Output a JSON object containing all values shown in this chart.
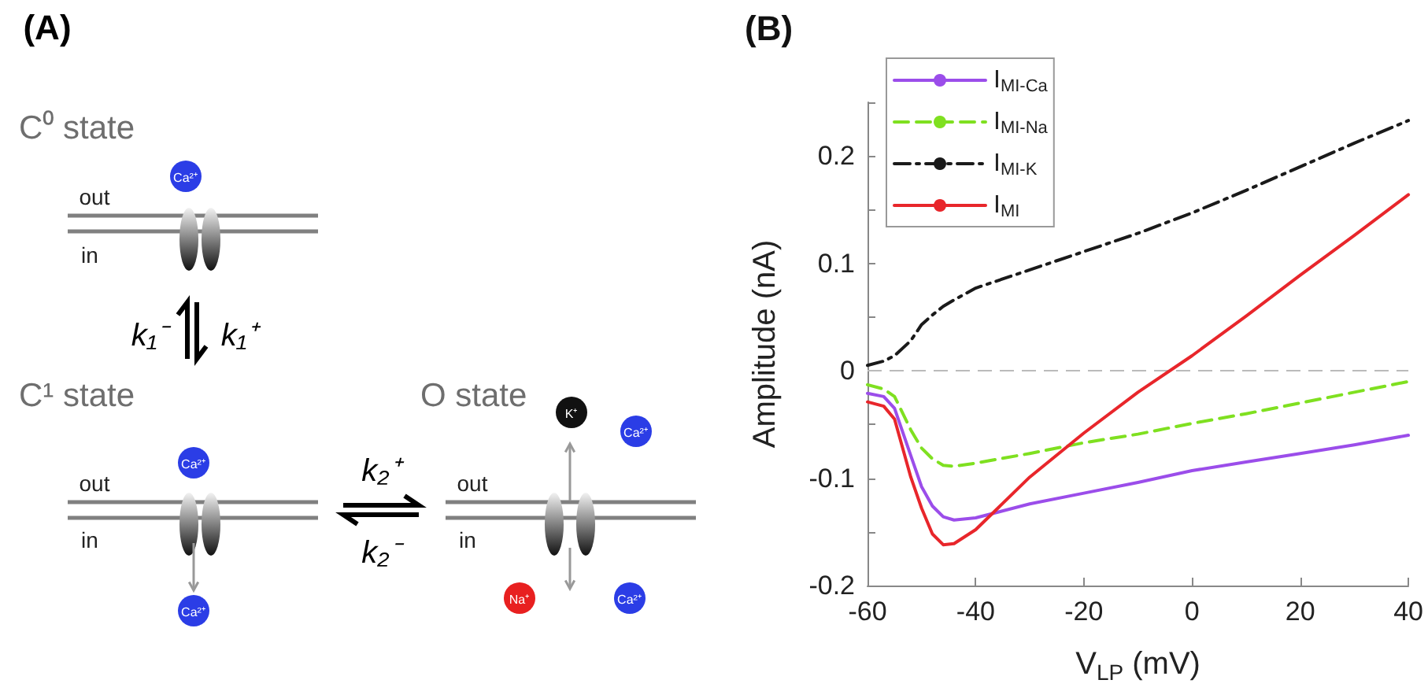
{
  "chart_data": [
    {
      "type": "other",
      "title": "(A)",
      "annotations": [
        "C⁰ state",
        "out",
        "in",
        "Ca²⁺",
        "k₁⁻",
        "k₁⁺",
        "C¹ state",
        "out",
        "in",
        "Ca²⁺",
        "Ca²⁺",
        "k₂⁺",
        "k₂⁻",
        "O state",
        "out",
        "in",
        "K⁺",
        "Ca²⁺",
        "Na⁺",
        "Ca²⁺"
      ]
    },
    {
      "type": "line",
      "title": "(B)",
      "xlabel": "V$_{LP}$ (mV)",
      "ylabel": "Amplitude (nA)",
      "x": [
        -60,
        -57,
        -55,
        -52,
        -50,
        -48,
        -46,
        -44,
        -40,
        -30,
        -20,
        -10,
        0,
        10,
        20,
        30,
        40
      ],
      "series": [
        {
          "name": "I$_{MI-Ca}$",
          "color": "#9b4dea",
          "line_style": "solid",
          "values": [
            -0.021,
            -0.024,
            -0.035,
            -0.079,
            -0.108,
            -0.126,
            -0.136,
            -0.139,
            -0.137,
            -0.124,
            -0.114,
            -0.104,
            -0.093,
            -0.085,
            -0.077,
            -0.069,
            -0.06
          ]
        },
        {
          "name": "I$_{MI-Na}$",
          "color": "#7fe020",
          "line_style": "dashed",
          "values": [
            -0.013,
            -0.017,
            -0.024,
            -0.055,
            -0.072,
            -0.082,
            -0.088,
            -0.089,
            -0.086,
            -0.077,
            -0.067,
            -0.059,
            -0.049,
            -0.04,
            -0.03,
            -0.02,
            -0.01
          ]
        },
        {
          "name": "I$_{MI-K}$",
          "color": "#1a1a1a",
          "line_style": "dashdot",
          "values": [
            0.005,
            0.009,
            0.014,
            0.028,
            0.043,
            0.052,
            0.06,
            0.066,
            0.077,
            0.094,
            0.111,
            0.128,
            0.147,
            0.168,
            0.19,
            0.212,
            0.233
          ]
        },
        {
          "name": "I$_{MI}$",
          "color": "#e8262b",
          "line_style": "solid",
          "values": [
            -0.029,
            -0.033,
            -0.045,
            -0.099,
            -0.128,
            -0.152,
            -0.162,
            -0.161,
            -0.148,
            -0.099,
            -0.058,
            -0.02,
            0.014,
            0.051,
            0.089,
            0.126,
            0.164
          ]
        }
      ],
      "xlim": [
        -60,
        40
      ],
      "xticks": [
        -60,
        -40,
        -20,
        0,
        20,
        40
      ],
      "ylim": [
        -0.2,
        0.25
      ],
      "yticks": [
        -0.2,
        {
          "value": -0.15,
          "label": null
        },
        -0.1,
        {
          "value": -0.05,
          "label": null
        },
        0,
        {
          "value": 0.05,
          "label": null
        },
        0.1,
        {
          "value": 0.15,
          "label": null
        },
        0.2,
        {
          "value": 0.25,
          "label": null
        }
      ],
      "ref_lines": [
        {
          "axis": "y",
          "value": 0,
          "color": "#bbbbbb",
          "line_style": "dashed"
        }
      ],
      "grid": false,
      "legend": "top left",
      "marker": "none"
    }
  ]
}
